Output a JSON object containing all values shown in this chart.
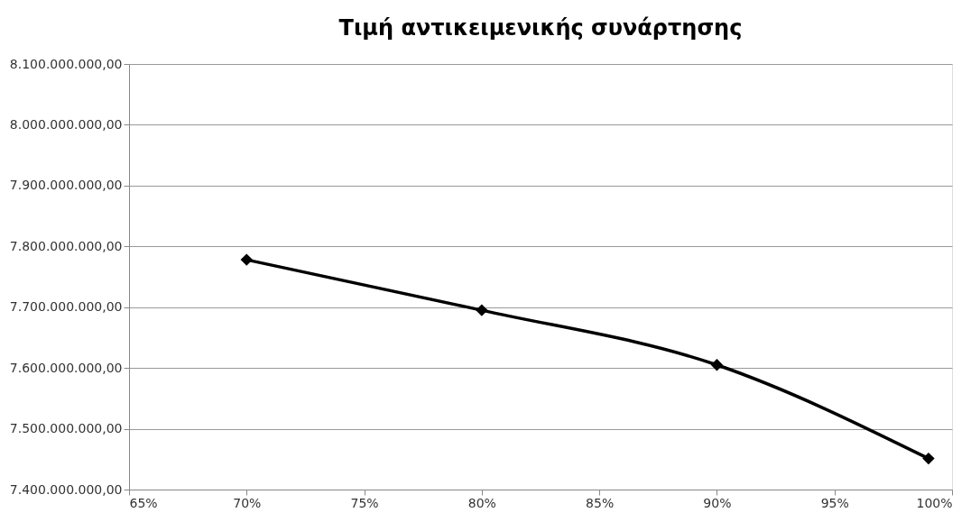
{
  "chart_data": {
    "type": "line",
    "title": "Τιμή αντικειμενικής συνάρτησης",
    "x": [
      70,
      80,
      90,
      99
    ],
    "series": [
      {
        "color": "#000000",
        "values": [
          7778000000,
          7695000000,
          7605000000,
          7451000000
        ]
      }
    ],
    "xlim": [
      65,
      100
    ],
    "xticks": [
      {
        "value": 65,
        "label": "65%"
      },
      {
        "value": 70,
        "label": "70%"
      },
      {
        "value": 75,
        "label": "75%"
      },
      {
        "value": 80,
        "label": "80%"
      },
      {
        "value": 85,
        "label": "85%"
      },
      {
        "value": 90,
        "label": "90%"
      },
      {
        "value": 95,
        "label": "95%"
      },
      {
        "value": 100,
        "label": "100%"
      }
    ],
    "ylim": [
      7400000000,
      8100000000
    ],
    "yticks": [
      {
        "value": 7400000000,
        "label": "7.400.000.000,00"
      },
      {
        "value": 7500000000,
        "label": "7.500.000.000,00"
      },
      {
        "value": 7600000000,
        "label": "7.600.000.000,00"
      },
      {
        "value": 7700000000,
        "label": "7.700.000.000,00"
      },
      {
        "value": 7800000000,
        "label": "7.800.000.000,00"
      },
      {
        "value": 7900000000,
        "label": "7.900.000.000,00"
      },
      {
        "value": 8000000000,
        "label": "8.000.000.000,00"
      },
      {
        "value": 8100000000,
        "label": "8.100.000.000,00"
      }
    ],
    "grid": "y",
    "marker": "diamond",
    "line_style": "solid"
  }
}
